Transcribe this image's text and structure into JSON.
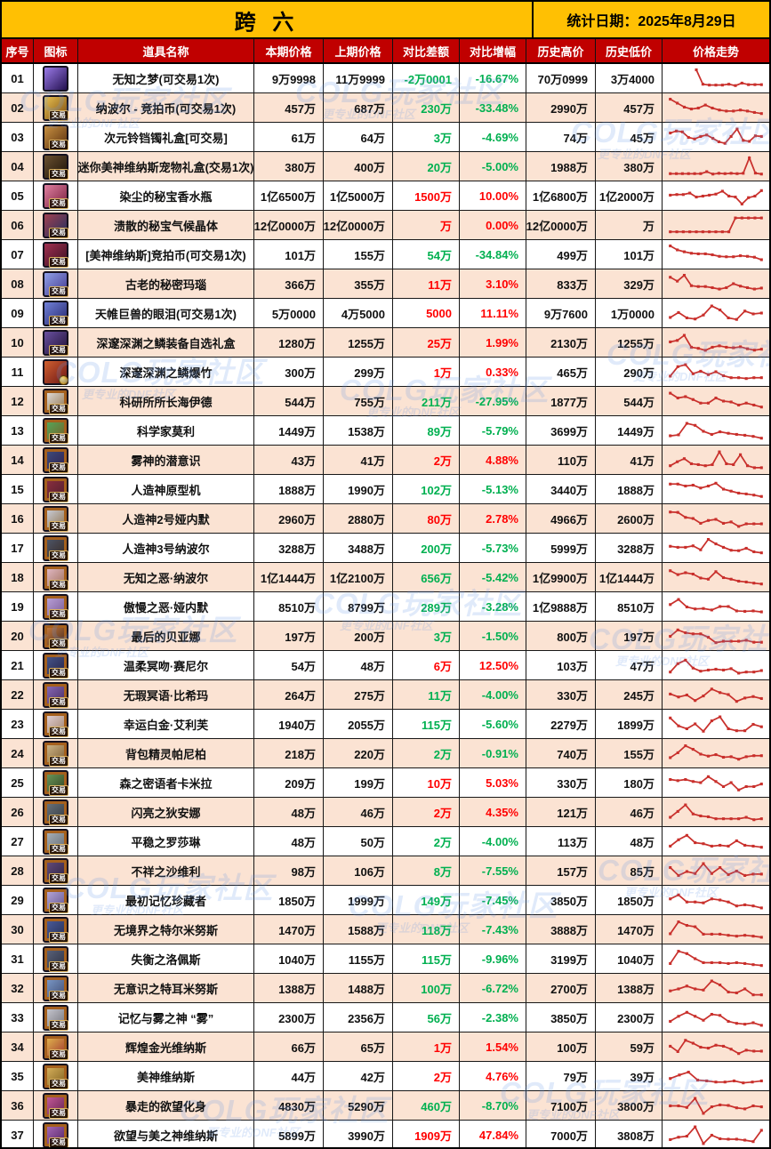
{
  "header": {
    "title": "跨 六",
    "date": "统计日期：2025年8月29日"
  },
  "columns": [
    "序号",
    "图标",
    "道具名称",
    "本期价格",
    "上期价格",
    "对比差额",
    "对比增幅",
    "历史高价",
    "历史低价",
    "价格走势"
  ],
  "labels": {
    "trade_badge": "交易"
  },
  "colors": {
    "title_bg": "#ffc003",
    "header_bg": "#c00000",
    "row_alt_bg": "#fbe3d3",
    "gain": "#ff0000",
    "loss": "#00b050",
    "spark": "#c9302c"
  },
  "watermark": {
    "title": "COLG玩家社区",
    "subtitle": "更专业的DNF社区"
  },
  "rows": [
    {
      "no": "01",
      "name": "无知之梦(可交易1次)",
      "cur": "9万9998",
      "prev": "11万9999",
      "diff": "-2万0001",
      "pct": "-16.67%",
      "high": "70万0999",
      "low": "3万4000",
      "dir": "down",
      "badge": "none",
      "card": false,
      "icon": [
        "#9b7be8",
        "#23104f"
      ],
      "trend": [
        null,
        null,
        null,
        null,
        0.95,
        0.22,
        0.18,
        0.18,
        0.18,
        0.22,
        0.15,
        0.28,
        0.2,
        0.2,
        0.2
      ]
    },
    {
      "no": "02",
      "name": "纳波尔 - 竞拍币(可交易1次)",
      "cur": "457万",
      "prev": "687万",
      "diff": "230万",
      "pct": "-33.48%",
      "high": "2990万",
      "low": "457万",
      "dir": "down",
      "badge": "trade",
      "card": false,
      "icon": [
        "#e8c050",
        "#7a4a10"
      ],
      "trend": [
        0.95,
        0.75,
        0.55,
        0.45,
        0.5,
        0.65,
        0.5,
        0.4,
        0.35,
        0.35,
        0.4,
        0.35,
        0.28,
        0.22
      ]
    },
    {
      "no": "03",
      "name": "次元铃铛镯礼盒[可交易]",
      "cur": "61万",
      "prev": "64万",
      "diff": "3万",
      "pct": "-4.69%",
      "high": "74万",
      "low": "45万",
      "dir": "down",
      "badge": "trade",
      "card": false,
      "icon": [
        "#c89040",
        "#5a3010"
      ],
      "trend": [
        0.72,
        0.82,
        0.78,
        0.5,
        0.42,
        0.55,
        0.62,
        0.45,
        0.28,
        0.2,
        0.55,
        0.92,
        0.35,
        0.3,
        0.58,
        0.55
      ]
    },
    {
      "no": "04",
      "name": "迷你美神维纳斯宠物礼盒(交易1次)",
      "cur": "380万",
      "prev": "400万",
      "diff": "20万",
      "pct": "-5.00%",
      "high": "1988万",
      "low": "380万",
      "dir": "down",
      "badge": "trade",
      "card": false,
      "icon": [
        "#6a5030",
        "#1c1208"
      ],
      "trend": [
        0.15,
        0.15,
        0.15,
        0.15,
        0.15,
        0.15,
        0.25,
        0.13,
        0.17,
        0.15,
        0.17,
        0.15,
        0.17,
        0.95,
        0.18,
        0.13
      ]
    },
    {
      "no": "05",
      "name": "染尘的秘宝香水瓶",
      "cur": "1亿6500万",
      "prev": "1亿5000万",
      "diff": "1500万",
      "pct": "10.00%",
      "high": "1亿6800万",
      "low": "1亿2000万",
      "dir": "up",
      "badge": "trade",
      "card": false,
      "icon": [
        "#e080a0",
        "#7a2040"
      ],
      "trend": [
        0.55,
        0.58,
        0.58,
        0.65,
        0.45,
        0.5,
        0.55,
        0.6,
        0.75,
        0.5,
        0.45,
        0.1,
        0.42,
        0.5,
        0.78
      ]
    },
    {
      "no": "06",
      "name": "溃散的秘宝气候晶体",
      "cur": "12亿0000万",
      "prev": "12亿0000万",
      "diff": "万",
      "pct": "0.00%",
      "high": "12亿0000万",
      "low": "万",
      "dir": "up",
      "badge": "trade",
      "card": false,
      "icon": [
        "#a04050",
        "#203060"
      ],
      "trend": [
        0.18,
        0.18,
        0.18,
        0.18,
        0.18,
        0.18,
        0.18,
        0.18,
        0.18,
        0.18,
        0.88,
        0.88,
        0.88,
        0.88,
        0.88
      ]
    },
    {
      "no": "07",
      "name": "[美神维纳斯]竞拍币(可交易1次)",
      "cur": "101万",
      "prev": "155万",
      "diff": "54万",
      "pct": "-34.84%",
      "high": "499万",
      "low": "101万",
      "dir": "down",
      "badge": "trade",
      "card": false,
      "icon": [
        "#a03050",
        "#3a1022"
      ],
      "trend": [
        0.95,
        0.75,
        0.65,
        0.58,
        0.55,
        0.55,
        0.5,
        0.42,
        0.4,
        0.4,
        0.45,
        0.42,
        0.38,
        0.25
      ]
    },
    {
      "no": "08",
      "name": "古老的秘密玛瑙",
      "cur": "366万",
      "prev": "355万",
      "diff": "11万",
      "pct": "3.10%",
      "high": "833万",
      "low": "329万",
      "dir": "up",
      "badge": "trade",
      "card": false,
      "icon": [
        "#90a0e8",
        "#443a8e"
      ],
      "trend": [
        0.85,
        0.65,
        0.95,
        0.42,
        0.38,
        0.38,
        0.32,
        0.25,
        0.32,
        0.52,
        0.4,
        0.32,
        0.25,
        0.3
      ]
    },
    {
      "no": "09",
      "name": "天帷巨兽的眼泪(可交易1次)",
      "cur": "5万0000",
      "prev": "4万5000",
      "diff": "5000",
      "pct": "11.11%",
      "high": "9万7600",
      "low": "1万0000",
      "dir": "up",
      "badge": "trade",
      "card": false,
      "icon": [
        "#7080d8",
        "#26286e"
      ],
      "trend": [
        0.3,
        0.55,
        0.28,
        0.22,
        0.42,
        0.88,
        0.68,
        0.28,
        0.2,
        0.62,
        0.48,
        0.52
      ]
    },
    {
      "no": "10",
      "name": "深邃深渊之鳞装备自选礼盒",
      "cur": "1280万",
      "prev": "1255万",
      "diff": "25万",
      "pct": "1.99%",
      "high": "2130万",
      "low": "1255万",
      "dir": "up",
      "badge": "trade",
      "card": false,
      "icon": [
        "#6a50a0",
        "#1e1034"
      ],
      "trend": [
        0.55,
        0.62,
        0.88,
        0.28,
        0.22,
        0.12,
        0.28,
        0.35,
        0.28,
        0.25,
        0.3,
        0.2,
        0.13,
        0.18
      ]
    },
    {
      "no": "11",
      "name": "深邃深渊之鳞爆竹",
      "cur": "300万",
      "prev": "299万",
      "diff": "1万",
      "pct": "0.33%",
      "high": "465万",
      "low": "290万",
      "dir": "up",
      "badge": "clock",
      "card": false,
      "icon": [
        "#d06030",
        "#6e1616"
      ],
      "trend": [
        0.3,
        0.78,
        0.88,
        0.42,
        0.55,
        0.38,
        0.52,
        0.32,
        0.22,
        0.22,
        0.18,
        0.22,
        0.22
      ]
    },
    {
      "no": "12",
      "name": "科研所所长海伊德",
      "cur": "544万",
      "prev": "755万",
      "diff": "211万",
      "pct": "-27.95%",
      "high": "1877万",
      "low": "544万",
      "dir": "down",
      "badge": "trade",
      "card": true,
      "icon": [
        "#e8e8e8",
        "#8a6a40"
      ],
      "trend": [
        0.92,
        0.68,
        0.75,
        0.6,
        0.42,
        0.42,
        0.68,
        0.52,
        0.48,
        0.32,
        0.42,
        0.32,
        0.22
      ]
    },
    {
      "no": "13",
      "name": "科学家莫利",
      "cur": "1449万",
      "prev": "1538万",
      "diff": "89万",
      "pct": "-5.79%",
      "high": "3699万",
      "low": "1449万",
      "dir": "down",
      "badge": "trade",
      "card": true,
      "icon": [
        "#50b060",
        "#7a5520"
      ],
      "trend": [
        0.25,
        0.3,
        0.88,
        0.78,
        0.48,
        0.32,
        0.45,
        0.38,
        0.32,
        0.28,
        0.22,
        0.13
      ]
    },
    {
      "no": "14",
      "name": "雾神的潜意识",
      "cur": "43万",
      "prev": "41万",
      "diff": "2万",
      "pct": "4.88%",
      "high": "110万",
      "low": "41万",
      "dir": "up",
      "badge": "trade",
      "card": true,
      "icon": [
        "#405080",
        "#2c1c4a"
      ],
      "trend": [
        0.22,
        0.42,
        0.58,
        0.32,
        0.28,
        0.22,
        0.28,
        0.92,
        0.32,
        0.28,
        0.78,
        0.22,
        0.12,
        0.12
      ]
    },
    {
      "no": "15",
      "name": "人造神原型机",
      "cur": "1888万",
      "prev": "1990万",
      "diff": "102万",
      "pct": "-5.13%",
      "high": "3440万",
      "low": "1888万",
      "dir": "down",
      "badge": "trade",
      "card": true,
      "icon": [
        "#903040",
        "#4a1c2c"
      ],
      "trend": [
        0.78,
        0.78,
        0.68,
        0.72,
        0.58,
        0.68,
        0.82,
        0.52,
        0.42,
        0.32,
        0.28,
        0.22,
        0.15
      ]
    },
    {
      "no": "16",
      "name": "人造神2号娅内默",
      "cur": "2960万",
      "prev": "2880万",
      "diff": "80万",
      "pct": "2.78%",
      "high": "4966万",
      "low": "2600万",
      "dir": "up",
      "badge": "trade",
      "card": true,
      "icon": [
        "#d0d8e8",
        "#8a6a40"
      ],
      "trend": [
        0.85,
        0.83,
        0.58,
        0.52,
        0.28,
        0.42,
        0.48,
        0.28,
        0.35,
        0.12,
        0.25,
        0.25,
        0.25
      ]
    },
    {
      "no": "17",
      "name": "人造神3号纳波尔",
      "cur": "3288万",
      "prev": "3488万",
      "diff": "200万",
      "pct": "-5.73%",
      "high": "5999万",
      "low": "3288万",
      "dir": "down",
      "badge": "trade",
      "card": true,
      "icon": [
        "#505a70",
        "#36261c"
      ],
      "trend": [
        0.6,
        0.55,
        0.55,
        0.62,
        0.42,
        0.95,
        0.72,
        0.55,
        0.4,
        0.38,
        0.5,
        0.32,
        0.27
      ]
    },
    {
      "no": "18",
      "name": "无知之恶·纳波尔",
      "cur": "1亿1444万",
      "prev": "1亿2100万",
      "diff": "656万",
      "pct": "-5.42%",
      "high": "1亿9900万",
      "low": "1亿1444万",
      "dir": "down",
      "badge": "trade",
      "card": true,
      "icon": [
        "#e8c0d0",
        "#9a6a50"
      ],
      "trend": [
        0.85,
        0.65,
        0.75,
        0.68,
        0.48,
        0.42,
        0.8,
        0.5,
        0.42,
        0.32,
        0.28,
        0.22,
        0.18
      ]
    },
    {
      "no": "19",
      "name": "傲慢之恶·娅内默",
      "cur": "8510万",
      "prev": "8799万",
      "diff": "289万",
      "pct": "-3.28%",
      "high": "1亿9888万",
      "low": "8510万",
      "dir": "down",
      "badge": "trade",
      "card": true,
      "icon": [
        "#c0a8e0",
        "#74548c"
      ],
      "trend": [
        0.62,
        0.88,
        0.5,
        0.4,
        0.42,
        0.35,
        0.52,
        0.52,
        0.3,
        0.28,
        0.3,
        0.25
      ]
    },
    {
      "no": "20",
      "name": "最后的贝亚娜",
      "cur": "197万",
      "prev": "200万",
      "diff": "3万",
      "pct": "-1.50%",
      "high": "800万",
      "low": "197万",
      "dir": "down",
      "badge": "trade",
      "card": true,
      "icon": [
        "#d08040",
        "#3c241c"
      ],
      "trend": [
        0.5,
        0.82,
        0.68,
        0.62,
        0.62,
        0.45,
        0.18,
        0.25,
        0.25,
        0.25,
        0.3,
        0.2,
        0.2
      ]
    },
    {
      "no": "21",
      "name": "温柔冥吻·赛尼尔",
      "cur": "54万",
      "prev": "48万",
      "diff": "6万",
      "pct": "12.50%",
      "high": "103万",
      "low": "47万",
      "dir": "up",
      "badge": "trade",
      "card": true,
      "icon": [
        "#4a5a90",
        "#221e42"
      ],
      "trend": [
        0.18,
        0.6,
        0.78,
        0.38,
        0.22,
        0.28,
        0.32,
        0.28,
        0.35,
        0.12,
        0.18,
        0.18,
        0.25
      ]
    },
    {
      "no": "22",
      "name": "无瑕冥语·比希玛",
      "cur": "264万",
      "prev": "275万",
      "diff": "11万",
      "pct": "-4.00%",
      "high": "330万",
      "low": "245万",
      "dir": "down",
      "badge": "trade",
      "card": true,
      "icon": [
        "#9070c0",
        "#40265a"
      ],
      "trend": [
        0.55,
        0.4,
        0.5,
        0.22,
        0.45,
        0.8,
        0.62,
        0.52,
        0.18,
        0.35,
        0.42,
        0.32
      ]
    },
    {
      "no": "23",
      "name": "幸运白金·艾利芙",
      "cur": "1940万",
      "prev": "2055万",
      "diff": "115万",
      "pct": "-5.60%",
      "high": "2279万",
      "low": "1899万",
      "dir": "down",
      "badge": "trade",
      "card": true,
      "icon": [
        "#e8d8e0",
        "#9a7a60"
      ],
      "trend": [
        0.82,
        0.42,
        0.28,
        0.52,
        0.15,
        0.68,
        0.88,
        0.28,
        0.18,
        0.18,
        0.5,
        0.38
      ]
    },
    {
      "no": "24",
      "name": "背包精灵帕尼柏",
      "cur": "218万",
      "prev": "220万",
      "diff": "2万",
      "pct": "-0.91%",
      "high": "740万",
      "low": "155万",
      "dir": "down",
      "badge": "trade",
      "card": true,
      "icon": [
        "#d8c090",
        "#74542c"
      ],
      "trend": [
        0.3,
        0.55,
        0.9,
        0.72,
        0.48,
        0.38,
        0.45,
        0.32,
        0.35,
        0.22,
        0.35,
        0.4,
        0.4
      ]
    },
    {
      "no": "25",
      "name": "森之密语者卡米拉",
      "cur": "209万",
      "prev": "199万",
      "diff": "10万",
      "pct": "5.03%",
      "high": "330万",
      "low": "180万",
      "dir": "up",
      "badge": "trade",
      "card": true,
      "icon": [
        "#70a060",
        "#2c3c1c"
      ],
      "trend": [
        0.68,
        0.62,
        0.68,
        0.58,
        0.52,
        0.82,
        0.58,
        0.32,
        0.52,
        0.15,
        0.32,
        0.32,
        0.45
      ]
    },
    {
      "no": "26",
      "name": "闪亮之狄安娜",
      "cur": "48万",
      "prev": "46万",
      "diff": "2万",
      "pct": "4.35%",
      "high": "121万",
      "low": "46万",
      "dir": "up",
      "badge": "trade",
      "card": true,
      "icon": [
        "#707880",
        "#2c343c"
      ],
      "trend": [
        0.25,
        0.55,
        0.88,
        0.42,
        0.32,
        0.28,
        0.18,
        0.18,
        0.18,
        0.18,
        0.25,
        0.13,
        0.18
      ]
    },
    {
      "no": "27",
      "name": "平稳之罗莎琳",
      "cur": "48万",
      "prev": "50万",
      "diff": "2万",
      "pct": "-4.00%",
      "high": "113万",
      "low": "48万",
      "dir": "down",
      "badge": "trade",
      "card": true,
      "icon": [
        "#b0b8c0",
        "#5c646c"
      ],
      "trend": [
        0.28,
        0.6,
        0.82,
        0.45,
        0.4,
        0.28,
        0.32,
        0.28,
        0.55,
        0.32,
        0.28,
        0.22
      ]
    },
    {
      "no": "28",
      "name": "不祥之沙维利",
      "cur": "98万",
      "prev": "106万",
      "diff": "8万",
      "pct": "-7.55%",
      "high": "157万",
      "low": "85万",
      "dir": "down",
      "badge": "trade",
      "card": true,
      "icon": [
        "#6a5080",
        "#281e3c"
      ],
      "trend": [
        0.68,
        0.28,
        0.48,
        0.38,
        0.88,
        0.38,
        0.68,
        0.32,
        0.5,
        0.28,
        0.35,
        0.35
      ]
    },
    {
      "no": "29",
      "name": "最初记忆珍藏者",
      "cur": "1850万",
      "prev": "1999万",
      "diff": "149万",
      "pct": "-7.45%",
      "high": "3850万",
      "low": "1850万",
      "dir": "down",
      "badge": "trade",
      "card": true,
      "icon": [
        "#c0b0e0",
        "#5a4c88"
      ],
      "trend": [
        0.58,
        0.78,
        0.42,
        0.42,
        0.38,
        0.58,
        0.52,
        0.42,
        0.22,
        0.28,
        0.22,
        0.12
      ]
    },
    {
      "no": "30",
      "name": "无境界之特尔米努斯",
      "cur": "1470万",
      "prev": "1588万",
      "diff": "118万",
      "pct": "-7.43%",
      "high": "3888万",
      "low": "1470万",
      "dir": "down",
      "badge": "trade",
      "card": true,
      "icon": [
        "#5060a0",
        "#1e284c"
      ],
      "trend": [
        0.3,
        0.9,
        0.72,
        0.65,
        0.28,
        0.28,
        0.28,
        0.22,
        0.18,
        0.22,
        0.18,
        0.12
      ]
    },
    {
      "no": "31",
      "name": "失衡之洛佩斯",
      "cur": "1040万",
      "prev": "1155万",
      "diff": "115万",
      "pct": "-9.96%",
      "high": "3199万",
      "low": "1040万",
      "dir": "down",
      "badge": "trade",
      "card": true,
      "icon": [
        "#606880",
        "#262a3c"
      ],
      "trend": [
        0.28,
        0.9,
        0.78,
        0.52,
        0.32,
        0.32,
        0.32,
        0.28,
        0.32,
        0.28,
        0.22,
        0.18
      ]
    },
    {
      "no": "32",
      "name": "无意识之特耳米努斯",
      "cur": "1388万",
      "prev": "1488万",
      "diff": "100万",
      "pct": "-6.72%",
      "high": "2700万",
      "low": "1388万",
      "dir": "down",
      "badge": "trade",
      "card": true,
      "icon": [
        "#80a0d0",
        "#3c466a"
      ],
      "trend": [
        0.38,
        0.48,
        0.62,
        0.48,
        0.42,
        0.88,
        0.68,
        0.32,
        0.28,
        0.48,
        0.18,
        0.18
      ]
    },
    {
      "no": "33",
      "name": "记忆与雾之神 “雾”",
      "cur": "2300万",
      "prev": "2356万",
      "diff": "56万",
      "pct": "-2.38%",
      "high": "3850万",
      "low": "2300万",
      "dir": "down",
      "badge": "trade",
      "card": true,
      "icon": [
        "#d0d0d8",
        "#6c6c74"
      ],
      "trend": [
        0.32,
        0.58,
        0.78,
        0.58,
        0.38,
        0.68,
        0.62,
        0.32,
        0.22,
        0.18,
        0.25,
        0.12
      ]
    },
    {
      "no": "34",
      "name": "辉煌金光维纳斯",
      "cur": "66万",
      "prev": "65万",
      "diff": "1万",
      "pct": "1.54%",
      "high": "100万",
      "low": "59万",
      "dir": "up",
      "badge": "trade",
      "card": true,
      "icon": [
        "#e8c050",
        "#9a2c2c"
      ],
      "trend": [
        0.55,
        0.28,
        0.85,
        0.7,
        0.5,
        0.45,
        0.6,
        0.55,
        0.4,
        0.18,
        0.35,
        0.3,
        0.3
      ]
    },
    {
      "no": "35",
      "name": "美神维纳斯",
      "cur": "44万",
      "prev": "42万",
      "diff": "2万",
      "pct": "4.76%",
      "high": "79万",
      "low": "39万",
      "dir": "up",
      "badge": "trade",
      "card": true,
      "icon": [
        "#e0b860",
        "#785a1c"
      ],
      "trend": [
        0.4,
        0.58,
        0.72,
        0.32,
        0.28,
        0.22,
        0.22,
        0.28,
        0.18,
        0.22,
        0.28
      ]
    },
    {
      "no": "36",
      "name": "暴走的欲望化身",
      "cur": "4830万",
      "prev": "5290万",
      "diff": "460万",
      "pct": "-8.70%",
      "high": "7100万",
      "low": "3800万",
      "dir": "down",
      "badge": "trade",
      "card": true,
      "icon": [
        "#d060a0",
        "#5a1c4a"
      ],
      "trend": [
        0.5,
        0.5,
        0.42,
        0.88,
        0.12,
        0.45,
        0.55,
        0.52,
        0.4,
        0.35,
        0.5,
        0.45
      ]
    },
    {
      "no": "37",
      "name": "欲望与美之神维纳斯",
      "cur": "5899万",
      "prev": "3990万",
      "diff": "1909万",
      "pct": "47.84%",
      "high": "7000万",
      "low": "3808万",
      "dir": "up",
      "badge": "trade",
      "card": true,
      "icon": [
        "#b070c0",
        "#4a1c5a"
      ],
      "trend": [
        0.28,
        0.4,
        0.45,
        0.92,
        0.08,
        0.5,
        0.32,
        0.3,
        0.3,
        0.25,
        0.18,
        0.75
      ]
    }
  ]
}
